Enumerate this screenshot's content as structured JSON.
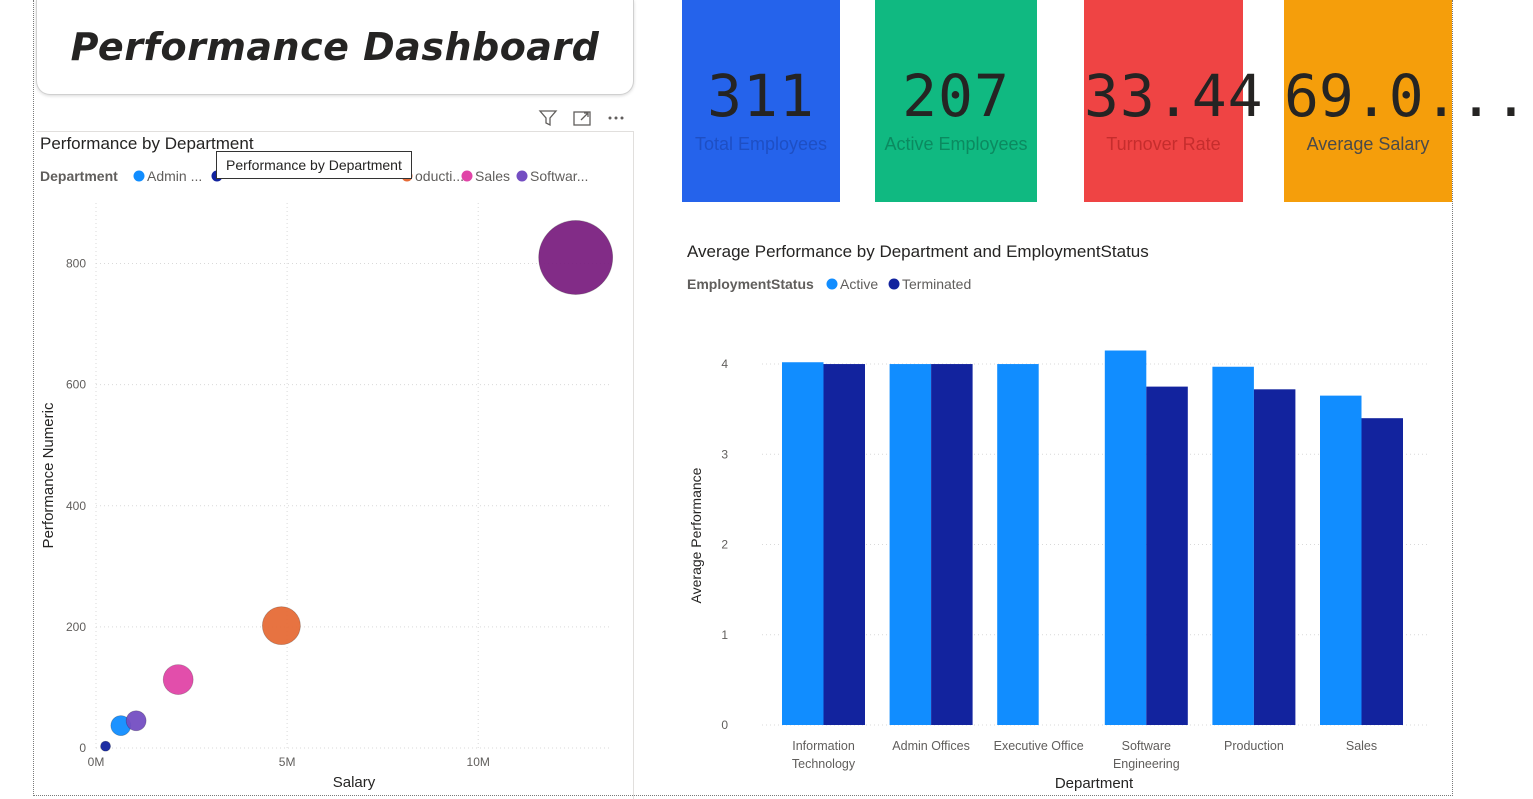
{
  "title": "Performance Dashboard",
  "visual_header_icons": [
    "filter-icon",
    "focus-mode-icon",
    "more-options-icon"
  ],
  "kpis": [
    {
      "value": "311",
      "label": "Total Employees",
      "bg": "#2563eb",
      "label_color": "#1e4fc4"
    },
    {
      "value": "207",
      "label": "Active Employees",
      "bg": "#10b981",
      "label_color": "#0b8a60"
    },
    {
      "value": "33.44",
      "label": "Turnover Rate",
      "bg": "#ef4444",
      "label_color": "#c62d2d"
    },
    {
      "value": "69.0...",
      "label": "Average Salary",
      "bg": "#f59e0b",
      "label_color": "#4a4a4a"
    }
  ],
  "tooltip": "Performance by Department",
  "chart_data": [
    {
      "type": "scatter",
      "title": "Performance by Department",
      "legend_title": "Department",
      "legend": [
        {
          "name": "Admin ...",
          "color": "#118dff"
        },
        {
          "name": "",
          "color": "#12239e"
        },
        {
          "name": "oducti...",
          "color": "#e66c37"
        },
        {
          "name": "Sales",
          "color": "#e044a7"
        },
        {
          "name": "Softwar...",
          "color": "#744ec2"
        }
      ],
      "xlabel": "Salary",
      "ylabel": "Performance Numeric",
      "xlim": [
        0,
        13500000
      ],
      "ylim": [
        0,
        900
      ],
      "x_ticks": [
        {
          "value": 0,
          "label": "0M"
        },
        {
          "value": 5000000,
          "label": "5M"
        },
        {
          "value": 10000000,
          "label": "10M"
        }
      ],
      "y_ticks": [
        0,
        200,
        400,
        600,
        800
      ],
      "points": [
        {
          "x": 250000,
          "y": 3,
          "size": 5,
          "color": "#12239e"
        },
        {
          "x": 650000,
          "y": 37,
          "size": 10,
          "color": "#118dff"
        },
        {
          "x": 1050000,
          "y": 45,
          "size": 10,
          "color": "#744ec2"
        },
        {
          "x": 2150000,
          "y": 113,
          "size": 15,
          "color": "#e044a7"
        },
        {
          "x": 4850000,
          "y": 202,
          "size": 19,
          "color": "#e66c37"
        },
        {
          "x": 12550000,
          "y": 810,
          "size": 37,
          "color": "#7b2181"
        }
      ]
    },
    {
      "type": "bar",
      "title": "Average Performance by Department and EmploymentStatus",
      "legend_title": "EmploymentStatus",
      "xlabel": "Department",
      "ylabel": "Average Performance",
      "ylim": [
        0,
        4.2
      ],
      "y_ticks": [
        0,
        1,
        2,
        3,
        4
      ],
      "categories": [
        [
          "Information",
          "Technology"
        ],
        [
          "Admin Offices"
        ],
        [
          "Executive Office"
        ],
        [
          "Software",
          "Engineering"
        ],
        [
          "Production"
        ],
        [
          "Sales"
        ]
      ],
      "series": [
        {
          "name": "Active",
          "color": "#118dff",
          "values": [
            4.02,
            4.0,
            4.0,
            4.15,
            3.97,
            3.65
          ]
        },
        {
          "name": "Terminated",
          "color": "#12239e",
          "values": [
            4.0,
            4.0,
            null,
            3.75,
            3.72,
            3.4
          ]
        }
      ]
    }
  ]
}
